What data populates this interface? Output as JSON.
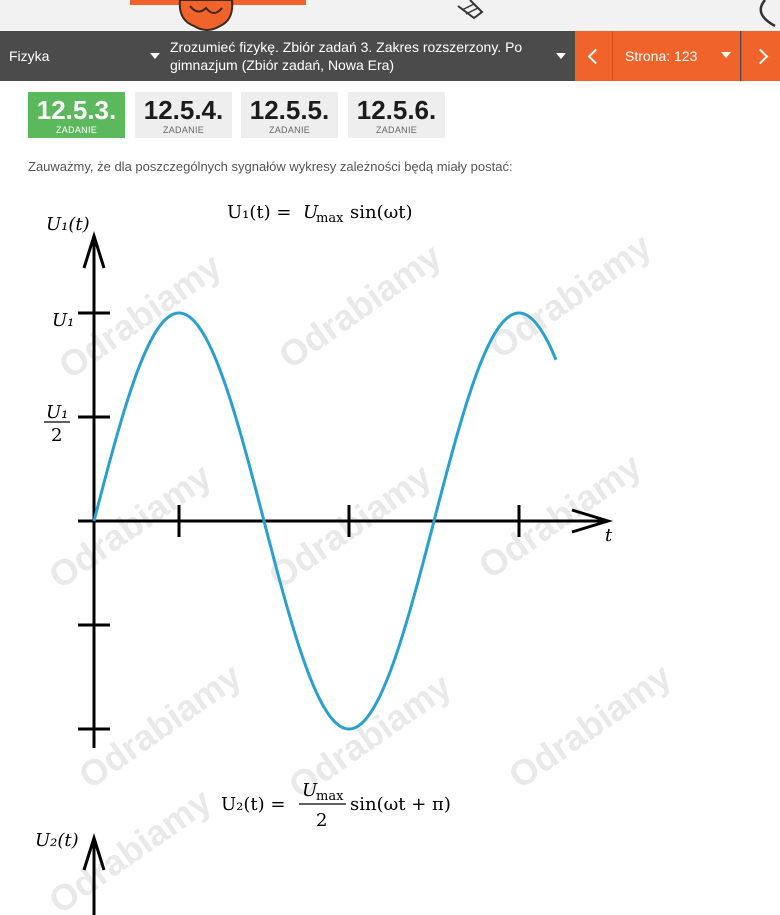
{
  "nav": {
    "subject": "Fizyka",
    "book": "Zrozumieć fizykę. Zbiór zadań 3. Zakres rozszerzony. Po gimnazjum (Zbiór zadań, Nowa Era)",
    "page_label": "Strona: 123"
  },
  "tasks": [
    {
      "number": "12.5.3.",
      "label": "ZADANIE",
      "active": true
    },
    {
      "number": "12.5.4.",
      "label": "ZADANIE",
      "active": false
    },
    {
      "number": "12.5.5.",
      "label": "ZADANIE",
      "active": false
    },
    {
      "number": "12.5.6.",
      "label": "ZADANIE",
      "active": false
    }
  ],
  "content": {
    "intro": "Zauważmy, że dla poszczególnych sygnałów wykresy zależności będą miały postać:"
  },
  "figure": {
    "formula1": {
      "lhs": "U₁(t) =",
      "U": "U",
      "sub": "max",
      "rhs": "sin(ωt)"
    },
    "y_axis_label_1": "U₁(t)",
    "tick_U1": "U₁",
    "tick_half_num": "U₁",
    "tick_half_den": "2",
    "x_axis_label": "t",
    "formula2": {
      "lhs": "U₂(t) =",
      "num": "U",
      "num_sub": "max",
      "den": "2",
      "rhs": "sin(ωt + π)"
    },
    "y_axis_label_2": "U₂(t)",
    "curve_color": "#2a9fd0",
    "watermark": "Odrabiamy"
  }
}
